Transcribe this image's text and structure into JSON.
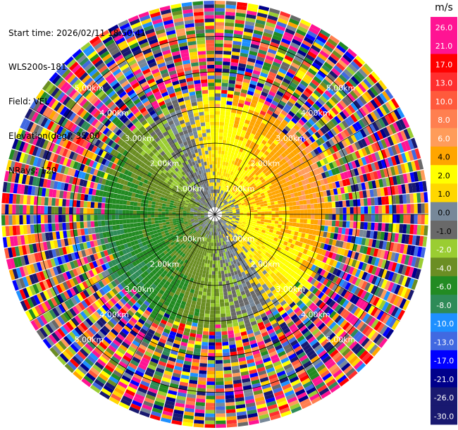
{
  "info": {
    "start_time": "Start time: 2026/02/11 18:50:41",
    "instrument": "WLS200s-181",
    "field": "Field: VEL",
    "elevation": "Elevation(deg): 35.00",
    "nrays": "NRays: 120"
  },
  "chart_data": {
    "type": "heatmap",
    "projection": "polar-ppi",
    "field": "VEL",
    "nrays": 120,
    "elevation_deg": 35.0,
    "max_range_km": 6.0,
    "range_rings_km": [
      1,
      2,
      3,
      4,
      5
    ],
    "ring_labels": [
      "1.00km",
      "2.00km",
      "3.00km",
      "4.00km",
      "5.00km"
    ],
    "pattern": {
      "near_field_max_km": 3.0,
      "positive_sector": "east / north-east (+1 to +6 m/s, yellow-orange)",
      "negative_sector": "west / south-west (-1 to -8 m/s, green)",
      "far_field": "noisy, full colour range"
    },
    "colorbar": {
      "unit": "m/s",
      "ticks": [
        "26.0",
        "21.0",
        "17.0",
        "13.0",
        "10.0",
        "8.0",
        "6.0",
        "4.0",
        "2.0",
        "1.0",
        "0.0",
        "-1.0",
        "-2.0",
        "-4.0",
        "-6.0",
        "-8.0",
        "-10.0",
        "-13.0",
        "-17.0",
        "-21.0",
        "-26.0",
        "-30.0"
      ],
      "colors": [
        "#ff1493",
        "#ff1493",
        "#ff0000",
        "#ff2e2e",
        "#ff5a3c",
        "#ff7f50",
        "#ff9c5a",
        "#ffa500",
        "#ffff00",
        "#ffd700",
        "#778899",
        "#696969",
        "#9acd32",
        "#6b8e23",
        "#228b22",
        "#2e8b57",
        "#1e90ff",
        "#4169e1",
        "#0000ff",
        "#00008b",
        "#191970",
        "#191970"
      ]
    }
  }
}
